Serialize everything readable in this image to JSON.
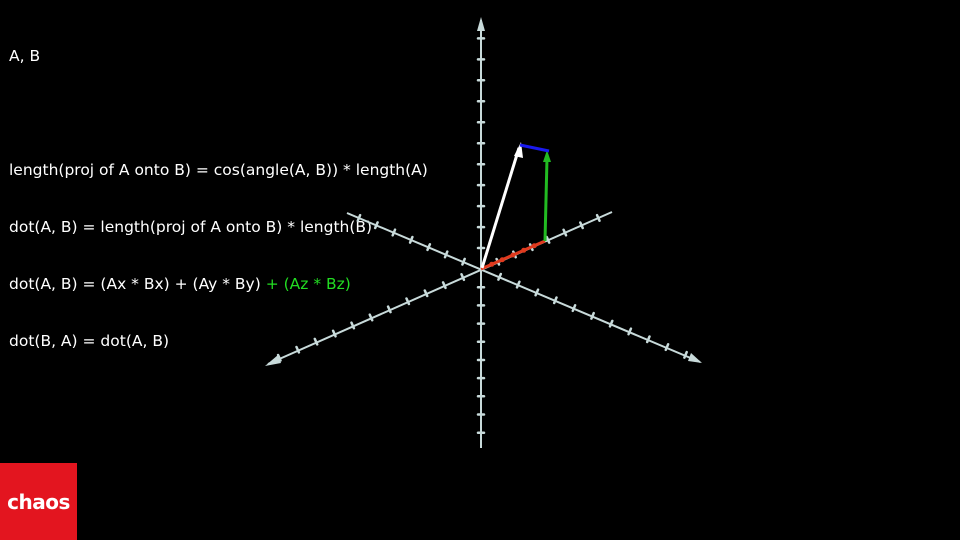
{
  "text": {
    "title": "A, B",
    "line1": "length(proj of A onto B) = cos(angle(A, B)) * length(A)",
    "line2": "dot(A, B) = length(proj of A onto B) * length(B)",
    "line3_main": "dot(A, B) = (Ax * Bx) + (Ay * By)",
    "line3_green": " + (Az * Bz)",
    "line4": "dot(B, A) = dot(A, B)"
  },
  "colors": {
    "axis": "#c8dada",
    "vector_a": "#ffffff",
    "projection": "#e03a1e",
    "component_y": "#22bb22",
    "component_z": "#1a1aee",
    "highlight_text": "#22dd22",
    "logo_bg": "#e3151f"
  },
  "logo": {
    "text": "chaos"
  }
}
